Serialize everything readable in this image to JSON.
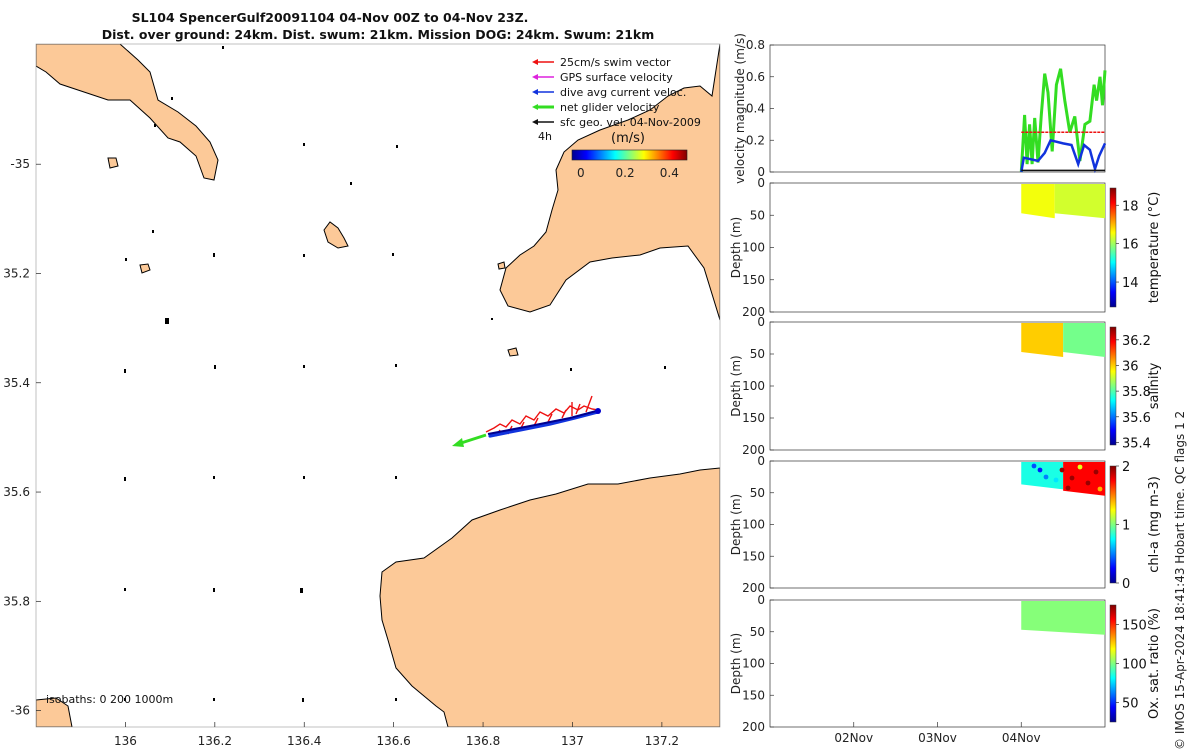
{
  "title": {
    "line1": "SL104 SpencerGulf20091104 04-Nov 00Z to 04-Nov 23Z.",
    "line2": "Dist. over ground: 24km. Dist. swum: 21km. Mission DOG: 24km. Swum: 21km"
  },
  "colors": {
    "land": "#fcc998",
    "swim": "#ee1111",
    "gps": "#dd22dd",
    "current": "#1133dd",
    "net": "#33dd22",
    "geo": "#111111"
  },
  "legend": {
    "items": [
      {
        "label": "25cm/s swim vector",
        "color": "#ee1111"
      },
      {
        "label": "GPS surface velocity",
        "color": "#dd22dd"
      },
      {
        "label": "dive avg current veloc.",
        "color": "#1133dd"
      },
      {
        "label": "net glider velocity",
        "color": "#33dd22"
      },
      {
        "label": "sfc geo. vel. 04-Nov-2009",
        "color": "#111111"
      }
    ],
    "time_label": "4h",
    "unit_label": "(m/s)",
    "colorbar_ticks": [
      "0",
      "0.2",
      "0.4"
    ]
  },
  "isobaths_label": "isobaths: 0   200   1000m",
  "side_note": "© IMOS 15-Apr-2024 18:41:43 Hobart time. QC flags 1  2",
  "chart_data": [
    {
      "type": "map",
      "x_ticks": [
        "136",
        "136.2",
        "136.4",
        "136.6",
        "136.8",
        "137",
        "137.2"
      ],
      "y_ticks": [
        "-35",
        "35.2",
        "35.4",
        "35.6",
        "35.8",
        "-36"
      ],
      "xlim": [
        135.8,
        137.33
      ],
      "ylim": [
        -36.03,
        -34.78
      ],
      "track": {
        "start": [
          137.07,
          -35.48
        ],
        "end": [
          136.82,
          -35.53
        ]
      },
      "net_velocity_arrow": {
        "from": [
          136.85,
          -35.52
        ],
        "to": [
          136.73,
          -35.545
        ]
      }
    },
    {
      "type": "line",
      "ylabel": "velocity magnitude (m/s)",
      "ylim": [
        0,
        0.8
      ],
      "y_ticks": [
        "0",
        "0.2",
        "0.4",
        "0.6",
        "0.8"
      ],
      "x_ticks": [
        "02Nov",
        "03Nov",
        "04Nov"
      ],
      "xlim_days": [
        1,
        5
      ],
      "series": [
        {
          "name": "net glider velocity",
          "color": "#33dd22",
          "x": [
            4.0,
            4.04,
            4.07,
            4.1,
            4.13,
            4.16,
            4.2,
            4.24,
            4.28,
            4.32,
            4.37,
            4.42,
            4.47,
            4.52,
            4.58,
            4.64,
            4.7,
            4.76,
            4.82,
            4.87,
            4.9,
            4.94,
            4.97,
            5.0
          ],
          "y": [
            0.0,
            0.36,
            0.05,
            0.3,
            0.05,
            0.34,
            0.06,
            0.36,
            0.62,
            0.5,
            0.13,
            0.55,
            0.65,
            0.45,
            0.25,
            0.35,
            0.07,
            0.3,
            0.32,
            0.55,
            0.45,
            0.6,
            0.42,
            0.64
          ]
        },
        {
          "name": "25cm/s swim vector",
          "color": "#ee1111",
          "x": [
            4.0,
            5.0
          ],
          "y": [
            0.25,
            0.25
          ]
        },
        {
          "name": "dive avg current veloc.",
          "color": "#1133dd",
          "x": [
            4.0,
            4.03,
            4.2,
            4.28,
            4.35,
            4.5,
            4.6,
            4.68,
            4.75,
            4.82,
            4.88,
            4.93,
            5.0
          ],
          "y": [
            0.0,
            0.09,
            0.07,
            0.12,
            0.2,
            0.18,
            0.17,
            0.05,
            0.17,
            0.14,
            0.02,
            0.1,
            0.18
          ]
        },
        {
          "name": "sfc geo. vel. 04-Nov-2009",
          "color": "#111111",
          "x": [
            4.0,
            5.0
          ],
          "y": [
            0.01,
            0.01
          ]
        }
      ]
    },
    {
      "type": "heatmap",
      "ylabel": "Depth (m)",
      "cblabel": "temperature (°C)",
      "ylim": [
        200,
        0
      ],
      "y_ticks": [
        "0",
        "50",
        "100",
        "150",
        "200"
      ],
      "cb_range": [
        12.7,
        18.9
      ],
      "cb_ticks": [
        "14",
        "16",
        "18"
      ],
      "segments": [
        {
          "x": [
            4.0,
            4.4
          ],
          "depth": [
            0,
            50
          ],
          "value": 16.5
        },
        {
          "x": [
            4.4,
            5.0
          ],
          "depth": [
            0,
            50
          ],
          "value": 16.3
        }
      ]
    },
    {
      "type": "heatmap",
      "ylabel": "Depth (m)",
      "cblabel": "salinity",
      "ylim": [
        200,
        0
      ],
      "y_ticks": [
        "0",
        "50",
        "100",
        "150",
        "200"
      ],
      "cb_range": [
        35.38,
        36.3
      ],
      "cb_ticks": [
        "35.4",
        "35.6",
        "35.8",
        "36",
        "36.2"
      ],
      "segments": [
        {
          "x": [
            4.0,
            4.5
          ],
          "depth": [
            0,
            50
          ],
          "value": 36.0
        },
        {
          "x": [
            4.5,
            5.0
          ],
          "depth": [
            0,
            50
          ],
          "value": 35.83
        }
      ]
    },
    {
      "type": "heatmap",
      "ylabel": "Depth (m)",
      "cblabel": "chl-a (mg m-3)",
      "ylim": [
        200,
        0
      ],
      "y_ticks": [
        "0",
        "50",
        "100",
        "150",
        "200"
      ],
      "cb_range": [
        0,
        2
      ],
      "cb_ticks": [
        "0",
        "1",
        "2"
      ],
      "segments": [
        {
          "x": [
            4.0,
            4.5
          ],
          "depth": [
            0,
            40
          ],
          "value": 0.8
        },
        {
          "x": [
            4.5,
            5.0
          ],
          "depth": [
            0,
            50
          ],
          "value": 1.75
        }
      ]
    },
    {
      "type": "heatmap",
      "ylabel": "Depth (m)",
      "cblabel": "Ox. sat. ratio (%)",
      "ylim": [
        200,
        0
      ],
      "y_ticks": [
        "0",
        "50",
        "100",
        "150",
        "200"
      ],
      "cb_range": [
        25,
        175
      ],
      "cb_ticks": [
        "50",
        "100",
        "150"
      ],
      "segments": [
        {
          "x": [
            4.0,
            5.0
          ],
          "depth": [
            0,
            50
          ],
          "value": 101
        }
      ]
    }
  ]
}
